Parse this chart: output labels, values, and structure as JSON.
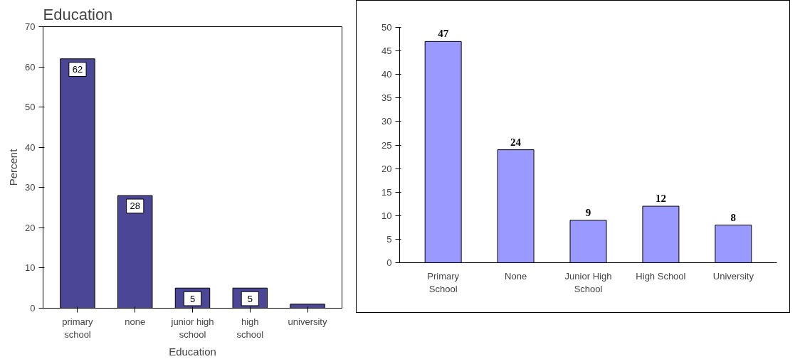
{
  "chart_data": [
    {
      "type": "bar",
      "title": "Education",
      "xlabel": "Education",
      "ylabel": "Percent",
      "categories": [
        "primary\nschool",
        "none",
        "junior high\nschool",
        "high\nschool",
        "university"
      ],
      "values": [
        62,
        28,
        5,
        5,
        1
      ],
      "value_labels": [
        "62",
        "28",
        "5",
        "5",
        null
      ],
      "color": "#4b4796",
      "ylim": [
        0,
        70
      ],
      "yticks": [
        0,
        10,
        20,
        30,
        40,
        50,
        60,
        70
      ],
      "grid": false
    },
    {
      "type": "bar",
      "categories": [
        "Primary\nSchool",
        "None",
        "Junior High\nSchool",
        "High School",
        "University"
      ],
      "values": [
        47,
        24,
        9,
        12,
        8
      ],
      "data_labels": true,
      "color": "#9999ff",
      "ylim": [
        0,
        50
      ],
      "yticks": [
        0,
        5,
        10,
        15,
        20,
        25,
        30,
        35,
        40,
        45,
        50
      ],
      "grid": false
    }
  ]
}
